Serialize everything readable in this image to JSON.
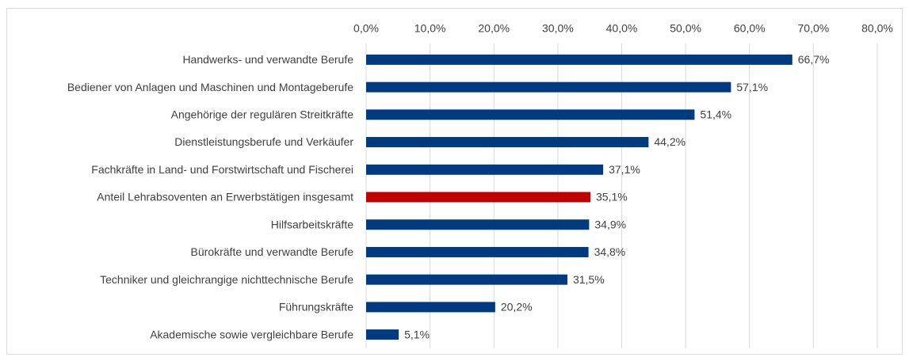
{
  "chart_data": {
    "type": "hbar",
    "categories": [
      "Handwerks- und verwandte Berufe",
      "Bediener von Anlagen und Maschinen und Montageberufe",
      "Angehörige der regulären Streitkräfte",
      "Dienstleistungsberufe und Verkäufer",
      "Fachkräfte in Land- und Forstwirtschaft und Fischerei",
      "Anteil Lehrabsoventen an Erwerbstätigen insgesamt",
      "Hilfsarbeitskräfte",
      "Bürokräfte und verwandte Berufe",
      "Techniker und gleichrangige nichttechnische Berufe",
      "Führungskräfte",
      "Akademische sowie vergleichbare Berufe"
    ],
    "values": [
      66.7,
      57.1,
      51.4,
      44.2,
      37.1,
      35.1,
      34.9,
      34.8,
      31.5,
      20.2,
      5.1
    ],
    "value_labels": [
      "66,7%",
      "57,1%",
      "51,4%",
      "44,2%",
      "37,1%",
      "35,1%",
      "34,9%",
      "34,8%",
      "31,5%",
      "20,2%",
      "5,1%"
    ],
    "colors": [
      "#003a80",
      "#003a80",
      "#003a80",
      "#003a80",
      "#003a80",
      "#c00000",
      "#003a80",
      "#003a80",
      "#003a80",
      "#003a80",
      "#003a80"
    ],
    "xlim": [
      0,
      80
    ],
    "xticks": [
      {
        "value": 0,
        "label": "0,0%"
      },
      {
        "value": 10,
        "label": "10,0%"
      },
      {
        "value": 20,
        "label": "20,0%"
      },
      {
        "value": 30,
        "label": "30,0%"
      },
      {
        "value": 40,
        "label": "40,0%"
      },
      {
        "value": 50,
        "label": "50,0%"
      },
      {
        "value": 60,
        "label": "60,0%"
      },
      {
        "value": 70,
        "label": "70,0%"
      },
      {
        "value": 80,
        "label": "80,0%"
      }
    ],
    "grid": true
  }
}
